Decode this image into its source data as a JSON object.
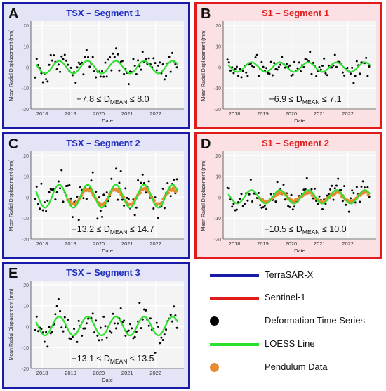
{
  "colors": {
    "tsx_border": "#1a1aa8",
    "s1_border": "#e01b1b",
    "tsx_bg": "#e4e4f7",
    "s1_bg": "#fbe1e3",
    "plot_bg": "#f4f4f4",
    "grid": "#ffffff",
    "tsx_title": "#1f2fbf",
    "s1_title": "#e01b1b",
    "points": "#000000",
    "loess": "#2ee02e",
    "pendulum": "#e88a2e"
  },
  "legend": {
    "items": [
      {
        "label": "TerraSAR-X",
        "kind": "line",
        "color": "#1a1aa8"
      },
      {
        "label": "Sentinel-1",
        "kind": "line",
        "color": "#e01b1b"
      },
      {
        "label": "Deformation Time Series",
        "kind": "dot",
        "color": "#000000"
      },
      {
        "label": "LOESS Line",
        "kind": "line",
        "color": "#2ee02e"
      },
      {
        "label": "Pendulum Data",
        "kind": "dot",
        "color": "#e88a2e"
      }
    ]
  },
  "chart_data": [
    {
      "type": "scatter",
      "letter": "A",
      "sensor": "TSX",
      "title": "TSX – Segment 1",
      "xlabel": "Date",
      "ylabel": "Mean Radial Displacement (mm)",
      "xlim": [
        2017.6,
        2023.0
      ],
      "ylim": [
        -20,
        22
      ],
      "xticks": [
        2018,
        2019,
        2020,
        2021,
        2022
      ],
      "yticks": [
        -20,
        -10,
        0,
        10,
        20
      ],
      "grid": true,
      "annotation": {
        "lo": "−7.8 ≤ D",
        "sub": "MEAN",
        "hi": " ≤ 8.0"
      },
      "loess": {
        "center": 0.0,
        "amp": 3.0,
        "phase": 0.35,
        "spread": 2.6
      },
      "pendulum": false
    },
    {
      "type": "scatter",
      "letter": "B",
      "sensor": "S1",
      "title": "S1 – Segment 1",
      "xlabel": "Date",
      "ylabel": "Mean Radial Displacement (mm)",
      "xlim": [
        2017.6,
        2023.0
      ],
      "ylim": [
        -20,
        22
      ],
      "xticks": [
        2018,
        2019,
        2020,
        2021,
        2022
      ],
      "yticks": [
        -20,
        -10,
        0,
        10,
        20
      ],
      "grid": true,
      "annotation": {
        "lo": "−6.9 ≤ D",
        "sub": "MEAN",
        "hi": " ≤ 7.1"
      },
      "loess": {
        "center": 0.0,
        "amp": 2.3,
        "phase": 0.35,
        "spread": 2.4
      },
      "pendulum": false
    },
    {
      "type": "scatter",
      "letter": "C",
      "sensor": "TSX",
      "title": "TSX – Segment 2",
      "xlabel": "Date",
      "ylabel": "Mean Radial Displacement (mm)",
      "xlim": [
        2017.6,
        2023.0
      ],
      "ylim": [
        -20,
        22
      ],
      "xticks": [
        2018,
        2019,
        2020,
        2021,
        2022
      ],
      "yticks": [
        -20,
        -10,
        0,
        10,
        20
      ],
      "grid": true,
      "annotation": {
        "lo": "−13.2 ≤ D",
        "sub": "MEAN",
        "hi": " ≤ 14.7"
      },
      "loess": {
        "center": 0.5,
        "amp": 5.5,
        "phase": 0.35,
        "spread": 4.0
      },
      "pendulum": true
    },
    {
      "type": "scatter",
      "letter": "D",
      "sensor": "S1",
      "title": "S1 – Segment 2",
      "xlabel": "Date",
      "ylabel": "Mean Radial Displacement (mm)",
      "xlim": [
        2017.6,
        2023.0
      ],
      "ylim": [
        -20,
        22
      ],
      "xticks": [
        2018,
        2019,
        2020,
        2021,
        2022
      ],
      "yticks": [
        -20,
        -10,
        0,
        10,
        20
      ],
      "grid": true,
      "annotation": {
        "lo": "−10.5 ≤ D",
        "sub": "MEAN",
        "hi": " ≤ 10.0"
      },
      "loess": {
        "center": 0.2,
        "amp": 3.2,
        "phase": 0.35,
        "spread": 2.8
      },
      "pendulum": true
    },
    {
      "type": "scatter",
      "letter": "E",
      "sensor": "TSX",
      "title": "TSX – Segment 3",
      "xlabel": "Date",
      "ylabel": "Mean Radial Displacement (mm)",
      "xlim": [
        2017.6,
        2023.0
      ],
      "ylim": [
        -20,
        22
      ],
      "xticks": [
        2018,
        2019,
        2020,
        2021,
        2022
      ],
      "yticks": [
        -20,
        -10,
        0,
        10,
        20
      ],
      "grid": true,
      "annotation": {
        "lo": "−13.1 ≤ D",
        "sub": "MEAN",
        "hi": " ≤ 13.5"
      },
      "loess": {
        "center": 0.3,
        "amp": 4.5,
        "phase": 0.35,
        "spread": 3.8
      },
      "pendulum": false
    }
  ]
}
